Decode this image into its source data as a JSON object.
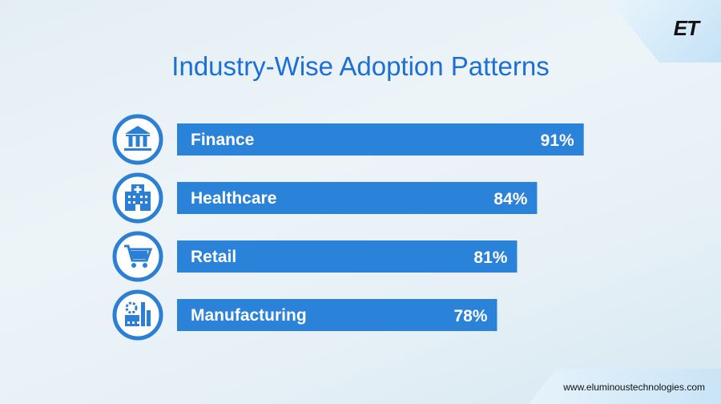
{
  "brand": {
    "logo": "ET",
    "url": "www.eluminoustechnologies.com"
  },
  "colors": {
    "bar": "#2b82d9",
    "icon": "#2b7fd4",
    "title": "#1b6fd6"
  },
  "chart_data": {
    "type": "bar",
    "orientation": "horizontal",
    "title": "Industry-Wise Adoption Patterns",
    "categories": [
      "Finance",
      "Healthcare",
      "Retail",
      "Manufacturing"
    ],
    "values": [
      91,
      84,
      81,
      78
    ],
    "value_labels": [
      "91%",
      "84%",
      "81%",
      "78%"
    ],
    "icons": [
      "bank-icon",
      "hospital-icon",
      "shopping-cart-icon",
      "factory-icon"
    ],
    "xlim": [
      30,
      92
    ],
    "xlabel": "",
    "ylabel": "",
    "grid": false,
    "legend": "none"
  }
}
